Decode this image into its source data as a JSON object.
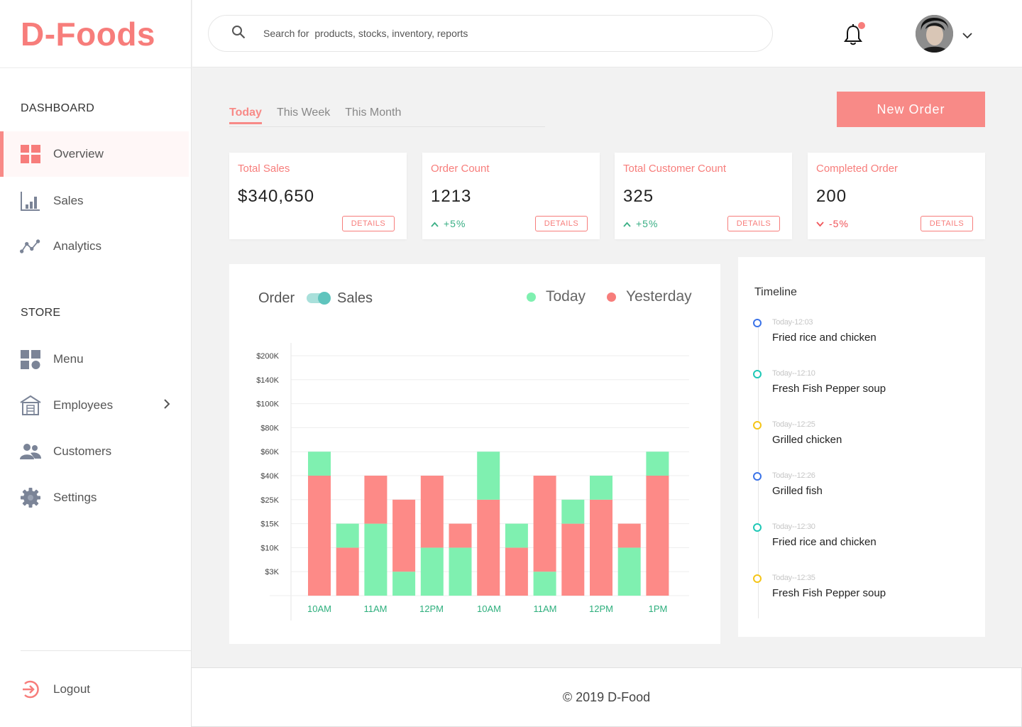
{
  "app": {
    "logo": "D-Foods"
  },
  "sidebar": {
    "dashboard_title": "DASHBOARD",
    "store_title": "STORE",
    "items": [
      {
        "label": "Overview",
        "icon": "grid-icon",
        "active": true
      },
      {
        "label": "Sales",
        "icon": "bar-chart-icon"
      },
      {
        "label": "Analytics",
        "icon": "analytics-icon"
      },
      {
        "label": "Menu",
        "icon": "menu-icon"
      },
      {
        "label": "Employees",
        "icon": "building-icon"
      },
      {
        "label": "Customers",
        "icon": "users-icon"
      },
      {
        "label": "Settings",
        "icon": "gear-icon"
      }
    ],
    "logout": "Logout"
  },
  "search": {
    "placeholder": "Search for  products, stocks, inventory, reports"
  },
  "tabs": [
    "Today",
    "This Week",
    "This Month"
  ],
  "new_order": "New Order",
  "stats": [
    {
      "label": "Total Sales",
      "value": "$340,650",
      "delta": "",
      "trend": "none",
      "details": "DETAILS"
    },
    {
      "label": "Order Count",
      "value": "1213",
      "delta": "+5%",
      "trend": "up",
      "details": "DETAILS"
    },
    {
      "label": "Total Customer Count",
      "value": "325",
      "delta": "+5%",
      "trend": "up",
      "details": "DETAILS"
    },
    {
      "label": "Completed Order",
      "value": "200",
      "delta": "-5%",
      "trend": "down",
      "details": "DETAILS"
    }
  ],
  "chart_panel": {
    "toggle_left": "Order",
    "toggle_right": "Sales",
    "legend": [
      {
        "label": "Today",
        "color": "#7ff0b0"
      },
      {
        "label": "Yesterday",
        "color": "#f77d7b"
      }
    ]
  },
  "chart_data": {
    "type": "bar",
    "stacked": true,
    "y_ticks": [
      "$3K",
      "$10K",
      "$15K",
      "$25K",
      "$40K",
      "$60K",
      "$80K",
      "$100K",
      "$140K",
      "$200K"
    ],
    "x_labels": [
      "10AM",
      "11AM",
      "12PM",
      "10AM",
      "11AM",
      "12PM",
      "1PM"
    ],
    "bars": [
      {
        "yesterday": "$40K",
        "today_top": "$60K"
      },
      {
        "yesterday": "$10K",
        "today_top": "$15K"
      },
      {
        "yesterday": "$40K",
        "today_top": "$15K"
      },
      {
        "yesterday": "$25K",
        "today_top": "$3K"
      },
      {
        "yesterday": "$40K",
        "today_top": "$10K"
      },
      {
        "yesterday": "$15K",
        "today_top": "$10K"
      },
      {
        "yesterday": "$25K",
        "today_top": "$60K"
      },
      {
        "yesterday": "$10K",
        "today_top": "$15K"
      },
      {
        "yesterday": "$40K",
        "today_top": "$3K"
      },
      {
        "yesterday": "$15K",
        "today_top": "$25K"
      },
      {
        "yesterday": "$25K",
        "today_top": "$40K"
      },
      {
        "yesterday": "$15K",
        "today_top": "$10K"
      },
      {
        "yesterday": "$40K",
        "today_top": "$60K"
      }
    ],
    "series": [
      {
        "name": "Today",
        "color": "#7ff0b0"
      },
      {
        "name": "Yesterday",
        "color": "#fd8a87"
      }
    ],
    "grid": true,
    "legend": "top-right"
  },
  "timeline": {
    "title": "Timeline",
    "items": [
      {
        "time": "Today-12:03",
        "text": "Fried rice and chicken",
        "color": "#3b73e8"
      },
      {
        "time": "Today--12:10",
        "text": "Fresh Fish Pepper soup",
        "color": "#1fc8b6"
      },
      {
        "time": "Today--12:25",
        "text": "Grilled chicken",
        "color": "#f5c518"
      },
      {
        "time": "Today--12:26",
        "text": "Grilled fish",
        "color": "#3b73e8"
      },
      {
        "time": "Today--12:30",
        "text": "Fried rice and chicken",
        "color": "#1fc8b6"
      },
      {
        "time": "Today--12:35",
        "text": "Fresh Fish Pepper soup",
        "color": "#f5c518"
      }
    ]
  },
  "footer": {
    "text": "© 2019 D-Food"
  }
}
